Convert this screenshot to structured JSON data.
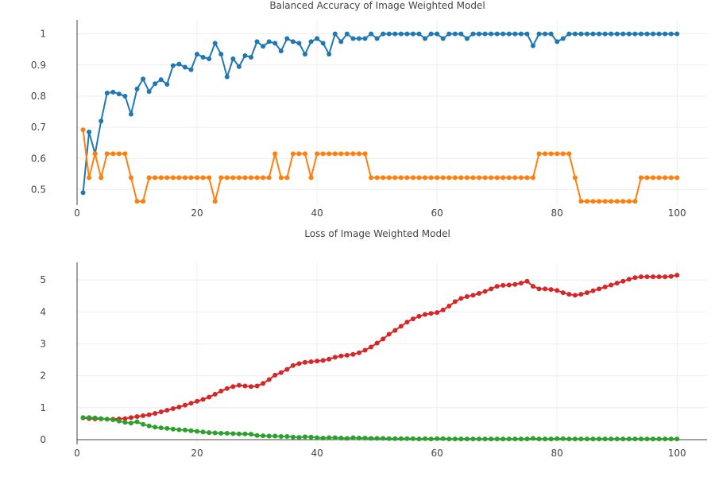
{
  "chart_data": [
    {
      "type": "line",
      "title": "Balanced Accuracy of Image Weighted Model",
      "xlabel": "",
      "ylabel": "",
      "xlim": [
        0,
        105
      ],
      "ylim": [
        0.45,
        1.045
      ],
      "xticks": [
        0,
        20,
        40,
        60,
        80,
        100
      ],
      "yticks": [
        0.5,
        0.6,
        0.7,
        0.8,
        0.9,
        1
      ],
      "grid": true,
      "legend": "none",
      "x": [
        1,
        2,
        3,
        4,
        5,
        6,
        7,
        8,
        9,
        10,
        11,
        12,
        13,
        14,
        15,
        16,
        17,
        18,
        19,
        20,
        21,
        22,
        23,
        24,
        25,
        26,
        27,
        28,
        29,
        30,
        31,
        32,
        33,
        34,
        35,
        36,
        37,
        38,
        39,
        40,
        41,
        42,
        43,
        44,
        45,
        46,
        47,
        48,
        49,
        50,
        51,
        52,
        53,
        54,
        55,
        56,
        57,
        58,
        59,
        60,
        61,
        62,
        63,
        64,
        65,
        66,
        67,
        68,
        69,
        70,
        71,
        72,
        73,
        74,
        75,
        76,
        77,
        78,
        79,
        80,
        81,
        82,
        83,
        84,
        85,
        86,
        87,
        88,
        89,
        90,
        91,
        92,
        93,
        94,
        95,
        96,
        97,
        98,
        99,
        100
      ],
      "series": [
        {
          "color": "#1f77b4",
          "values": [
            0.49,
            0.685,
            0.615,
            0.72,
            0.81,
            0.813,
            0.807,
            0.8,
            0.742,
            0.823,
            0.855,
            0.815,
            0.84,
            0.853,
            0.838,
            0.898,
            0.903,
            0.893,
            0.885,
            0.935,
            0.925,
            0.92,
            0.97,
            0.935,
            0.862,
            0.92,
            0.895,
            0.93,
            0.925,
            0.975,
            0.96,
            0.975,
            0.97,
            0.945,
            0.985,
            0.975,
            0.97,
            0.935,
            0.975,
            0.985,
            0.97,
            0.935,
            1.0,
            0.975,
            1.0,
            0.985,
            0.985,
            0.985,
            1.0,
            0.985,
            1.0,
            1.0,
            1.0,
            1.0,
            1.0,
            1.0,
            1.0,
            0.985,
            1.0,
            1.0,
            0.985,
            1.0,
            1.0,
            1.0,
            0.985,
            1.0,
            1.0,
            1.0,
            1.0,
            1.0,
            1.0,
            1.0,
            1.0,
            1.0,
            1.0,
            0.962,
            1.0,
            1.0,
            1.0,
            0.975,
            0.985,
            1.0,
            1.0,
            1.0,
            1.0,
            1.0,
            1.0,
            1.0,
            1.0,
            1.0,
            1.0,
            1.0,
            1.0,
            1.0,
            1.0,
            1.0,
            1.0,
            1.0,
            1.0,
            1.0
          ]
        },
        {
          "color": "#ff7f0e",
          "values": [
            0.692,
            0.538,
            0.615,
            0.538,
            0.615,
            0.615,
            0.615,
            0.615,
            0.538,
            0.462,
            0.462,
            0.538,
            0.538,
            0.538,
            0.538,
            0.538,
            0.538,
            0.538,
            0.538,
            0.538,
            0.538,
            0.538,
            0.462,
            0.538,
            0.538,
            0.538,
            0.538,
            0.538,
            0.538,
            0.538,
            0.538,
            0.538,
            0.615,
            0.538,
            0.538,
            0.615,
            0.615,
            0.615,
            0.538,
            0.615,
            0.615,
            0.615,
            0.615,
            0.615,
            0.615,
            0.615,
            0.615,
            0.615,
            0.538,
            0.538,
            0.538,
            0.538,
            0.538,
            0.538,
            0.538,
            0.538,
            0.538,
            0.538,
            0.538,
            0.538,
            0.538,
            0.538,
            0.538,
            0.538,
            0.538,
            0.538,
            0.538,
            0.538,
            0.538,
            0.538,
            0.538,
            0.538,
            0.538,
            0.538,
            0.538,
            0.538,
            0.615,
            0.615,
            0.615,
            0.615,
            0.615,
            0.615,
            0.538,
            0.462,
            0.462,
            0.462,
            0.462,
            0.462,
            0.462,
            0.462,
            0.462,
            0.462,
            0.462,
            0.538,
            0.538,
            0.538,
            0.538,
            0.538,
            0.538,
            0.538
          ]
        }
      ]
    },
    {
      "type": "line",
      "title": "Loss of Image Weighted Model",
      "xlabel": "",
      "ylabel": "",
      "xlim": [
        0,
        105
      ],
      "ylim": [
        -0.15,
        5.55
      ],
      "xticks": [
        0,
        20,
        40,
        60,
        80,
        100
      ],
      "yticks": [
        0,
        1,
        2,
        3,
        4,
        5
      ],
      "grid": true,
      "legend": "none",
      "x": [
        1,
        2,
        3,
        4,
        5,
        6,
        7,
        8,
        9,
        10,
        11,
        12,
        13,
        14,
        15,
        16,
        17,
        18,
        19,
        20,
        21,
        22,
        23,
        24,
        25,
        26,
        27,
        28,
        29,
        30,
        31,
        32,
        33,
        34,
        35,
        36,
        37,
        38,
        39,
        40,
        41,
        42,
        43,
        44,
        45,
        46,
        47,
        48,
        49,
        50,
        51,
        52,
        53,
        54,
        55,
        56,
        57,
        58,
        59,
        60,
        61,
        62,
        63,
        64,
        65,
        66,
        67,
        68,
        69,
        70,
        71,
        72,
        73,
        74,
        75,
        76,
        77,
        78,
        79,
        80,
        81,
        82,
        83,
        84,
        85,
        86,
        87,
        88,
        89,
        90,
        91,
        92,
        93,
        94,
        95,
        96,
        97,
        98,
        99,
        100
      ],
      "series": [
        {
          "color": "#d62728",
          "values": [
            0.68,
            0.66,
            0.65,
            0.65,
            0.64,
            0.64,
            0.65,
            0.66,
            0.69,
            0.72,
            0.75,
            0.78,
            0.82,
            0.87,
            0.92,
            0.97,
            1.02,
            1.08,
            1.14,
            1.2,
            1.26,
            1.33,
            1.42,
            1.52,
            1.6,
            1.66,
            1.7,
            1.68,
            1.66,
            1.68,
            1.76,
            1.88,
            2.02,
            2.1,
            2.2,
            2.32,
            2.38,
            2.42,
            2.44,
            2.46,
            2.48,
            2.52,
            2.58,
            2.62,
            2.64,
            2.67,
            2.72,
            2.8,
            2.9,
            3.02,
            3.15,
            3.3,
            3.42,
            3.55,
            3.68,
            3.78,
            3.86,
            3.92,
            3.95,
            3.98,
            4.06,
            4.18,
            4.32,
            4.42,
            4.48,
            4.52,
            4.58,
            4.64,
            4.72,
            4.8,
            4.83,
            4.84,
            4.86,
            4.9,
            4.96,
            4.8,
            4.72,
            4.72,
            4.7,
            4.67,
            4.6,
            4.55,
            4.52,
            4.55,
            4.6,
            4.66,
            4.72,
            4.78,
            4.84,
            4.9,
            4.96,
            5.02,
            5.07,
            5.1,
            5.1,
            5.1,
            5.1,
            5.1,
            5.11,
            5.15
          ]
        },
        {
          "color": "#2ca02c",
          "values": [
            0.69,
            0.69,
            0.68,
            0.66,
            0.64,
            0.62,
            0.58,
            0.54,
            0.52,
            0.56,
            0.48,
            0.43,
            0.39,
            0.37,
            0.35,
            0.33,
            0.31,
            0.3,
            0.28,
            0.26,
            0.24,
            0.22,
            0.21,
            0.2,
            0.2,
            0.19,
            0.18,
            0.18,
            0.17,
            0.13,
            0.12,
            0.11,
            0.11,
            0.1,
            0.1,
            0.08,
            0.07,
            0.09,
            0.08,
            0.06,
            0.05,
            0.06,
            0.06,
            0.05,
            0.04,
            0.06,
            0.05,
            0.05,
            0.04,
            0.04,
            0.04,
            0.03,
            0.03,
            0.03,
            0.03,
            0.03,
            0.02,
            0.03,
            0.02,
            0.03,
            0.03,
            0.02,
            0.02,
            0.02,
            0.02,
            0.02,
            0.02,
            0.02,
            0.02,
            0.02,
            0.02,
            0.02,
            0.02,
            0.02,
            0.02,
            0.04,
            0.02,
            0.02,
            0.02,
            0.03,
            0.03,
            0.02,
            0.02,
            0.02,
            0.02,
            0.02,
            0.02,
            0.02,
            0.02,
            0.02,
            0.02,
            0.02,
            0.02,
            0.02,
            0.02,
            0.02,
            0.02,
            0.02,
            0.02,
            0.02
          ]
        }
      ]
    }
  ]
}
